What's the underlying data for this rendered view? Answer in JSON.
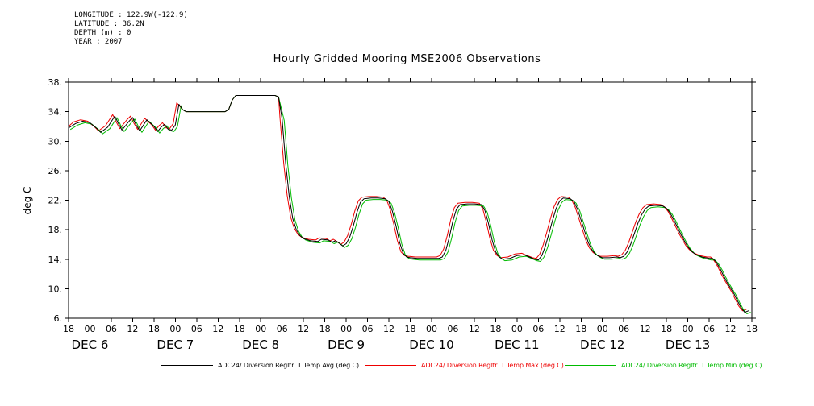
{
  "header": {
    "longitude_line": "LONGITUDE : 122.9W(-122.9)",
    "latitude_line": "LATITUDE : 36.2N",
    "depth_line": "DEPTH (m) : 0",
    "year_line": "YEAR : 2007"
  },
  "title": "Hourly Gridded Mooring MSE2006 Observations",
  "y_axis": {
    "label": "deg C",
    "tick_labels": [
      "38.",
      "34.",
      "30.",
      "26.",
      "22.",
      "18.",
      "14.",
      "10.",
      "6."
    ],
    "tick_values": [
      38,
      34,
      30,
      26,
      22,
      18,
      14,
      10,
      6
    ],
    "min": 6,
    "max": 38
  },
  "x_axis": {
    "hour_tick_step_hours": 6,
    "hour_tick_labels": [
      "18",
      "00",
      "06",
      "12",
      "18",
      "00",
      "06",
      "12",
      "18",
      "00",
      "06",
      "12",
      "18",
      "00",
      "06",
      "12",
      "18",
      "00",
      "06",
      "12",
      "18",
      "00",
      "06",
      "12",
      "18",
      "00",
      "06",
      "12",
      "18",
      "00",
      "06",
      "12",
      "18"
    ],
    "date_ticks": [
      {
        "label": "DEC 6",
        "hour": 6
      },
      {
        "label": "DEC 7",
        "hour": 30
      },
      {
        "label": "DEC 8",
        "hour": 54
      },
      {
        "label": "DEC 9",
        "hour": 78
      },
      {
        "label": "DEC 10",
        "hour": 102
      },
      {
        "label": "DEC 11",
        "hour": 126
      },
      {
        "label": "DEC 12",
        "hour": 150
      },
      {
        "label": "DEC 13",
        "hour": 174
      }
    ]
  },
  "chart_data": {
    "type": "line",
    "title": "Hourly Gridded Mooring MSE2006 Observations",
    "ylabel": "deg C",
    "ylim": [
      6,
      38
    ],
    "xlim": [
      0,
      192
    ],
    "x_unit": "hours, axis ticks every 6h from 18:00 DEC 5 to 18:00 DEC 13 2007",
    "grid": false,
    "legend_position": "bottom",
    "series": [
      {
        "name": "ADC24/ Diversion Regltr. 1 Temp Avg (deg C)",
        "color": "#000000",
        "points": [
          [
            0,
            31.8
          ],
          [
            2,
            32.4
          ],
          [
            4,
            32.7
          ],
          [
            6,
            32.5
          ],
          [
            8,
            31.7
          ],
          [
            9,
            31.2
          ],
          [
            11,
            31.9
          ],
          [
            13,
            33.4
          ],
          [
            14,
            32.4
          ],
          [
            15,
            31.5
          ],
          [
            17,
            32.7
          ],
          [
            18,
            33.2
          ],
          [
            19,
            32.2
          ],
          [
            20,
            31.4
          ],
          [
            22,
            32.9
          ],
          [
            24,
            32.0
          ],
          [
            25,
            31.3
          ],
          [
            26,
            31.9
          ],
          [
            27,
            32.3
          ],
          [
            28,
            31.6
          ],
          [
            29,
            31.5
          ],
          [
            30,
            32.2
          ],
          [
            31,
            35.0
          ],
          [
            32,
            34.3
          ],
          [
            33,
            34.0
          ],
          [
            38,
            34.0
          ],
          [
            44,
            34.0
          ],
          [
            45,
            34.3
          ],
          [
            46,
            35.6
          ],
          [
            47,
            36.2
          ],
          [
            52,
            36.2
          ],
          [
            58,
            36.2
          ],
          [
            59,
            36.0
          ],
          [
            60,
            33.0
          ],
          [
            61,
            27.0
          ],
          [
            62,
            22.5
          ],
          [
            63,
            19.5
          ],
          [
            64,
            18.0
          ],
          [
            65,
            17.2
          ],
          [
            66,
            16.8
          ],
          [
            68,
            16.5
          ],
          [
            70,
            16.4
          ],
          [
            71,
            16.7
          ],
          [
            73,
            16.6
          ],
          [
            74,
            16.3
          ],
          [
            75,
            16.5
          ],
          [
            76,
            16.2
          ],
          [
            77,
            15.8
          ],
          [
            78,
            16.1
          ],
          [
            79,
            17.0
          ],
          [
            80,
            18.5
          ],
          [
            81,
            20.3
          ],
          [
            82,
            21.7
          ],
          [
            83,
            22.2
          ],
          [
            85,
            22.3
          ],
          [
            87,
            22.3
          ],
          [
            89,
            22.2
          ],
          [
            90,
            21.8
          ],
          [
            91,
            20.5
          ],
          [
            92,
            18.5
          ],
          [
            93,
            16.3
          ],
          [
            94,
            14.8
          ],
          [
            95,
            14.3
          ],
          [
            96,
            14.2
          ],
          [
            98,
            14.1
          ],
          [
            101,
            14.1
          ],
          [
            104,
            14.1
          ],
          [
            105,
            14.3
          ],
          [
            106,
            15.2
          ],
          [
            107,
            17.0
          ],
          [
            108,
            19.2
          ],
          [
            109,
            20.8
          ],
          [
            110,
            21.4
          ],
          [
            112,
            21.5
          ],
          [
            114,
            21.5
          ],
          [
            116,
            21.4
          ],
          [
            117,
            20.6
          ],
          [
            118,
            18.8
          ],
          [
            119,
            16.6
          ],
          [
            120,
            15.0
          ],
          [
            121,
            14.3
          ],
          [
            122,
            14.0
          ],
          [
            124,
            14.1
          ],
          [
            126,
            14.5
          ],
          [
            128,
            14.6
          ],
          [
            129,
            14.4
          ],
          [
            130,
            14.2
          ],
          [
            131,
            14.0
          ],
          [
            132,
            13.9
          ],
          [
            133,
            14.5
          ],
          [
            134,
            15.8
          ],
          [
            135,
            17.5
          ],
          [
            136,
            19.3
          ],
          [
            137,
            20.9
          ],
          [
            138,
            21.9
          ],
          [
            139,
            22.3
          ],
          [
            141,
            22.2
          ],
          [
            142,
            21.8
          ],
          [
            143,
            20.8
          ],
          [
            144,
            19.3
          ],
          [
            145,
            17.8
          ],
          [
            146,
            16.3
          ],
          [
            147,
            15.3
          ],
          [
            148,
            14.7
          ],
          [
            149,
            14.4
          ],
          [
            150,
            14.2
          ],
          [
            152,
            14.2
          ],
          [
            154,
            14.3
          ],
          [
            155,
            14.2
          ],
          [
            156,
            14.4
          ],
          [
            157,
            15.0
          ],
          [
            158,
            16.1
          ],
          [
            159,
            17.5
          ],
          [
            160,
            18.9
          ],
          [
            161,
            20.0
          ],
          [
            162,
            20.8
          ],
          [
            163,
            21.2
          ],
          [
            165,
            21.3
          ],
          [
            167,
            21.2
          ],
          [
            168,
            20.9
          ],
          [
            169,
            20.3
          ],
          [
            170,
            19.4
          ],
          [
            171,
            18.4
          ],
          [
            172,
            17.4
          ],
          [
            173,
            16.5
          ],
          [
            174,
            15.7
          ],
          [
            175,
            15.1
          ],
          [
            176,
            14.7
          ],
          [
            177,
            14.5
          ],
          [
            178,
            14.3
          ],
          [
            179,
            14.2
          ],
          [
            180,
            14.1
          ],
          [
            181,
            14.1
          ],
          [
            182,
            13.6
          ],
          [
            183,
            12.8
          ],
          [
            184,
            11.8
          ],
          [
            185,
            10.9
          ],
          [
            186,
            10.1
          ],
          [
            187,
            9.3
          ],
          [
            188,
            8.3
          ],
          [
            189,
            7.4
          ],
          [
            190,
            6.8
          ],
          [
            191,
            7.0
          ]
        ]
      },
      {
        "name": "ADC24/ Diversion Regltr. 1 Temp Max (deg C)",
        "color": "#ee0000",
        "derived_from_series": 0,
        "t_offset_hours": -0.6,
        "value_offset": 0.2,
        "equal_to_base_hour_range": [
          32,
          59
        ]
      },
      {
        "name": "ADC24/ Diversion Regltr. 1 Temp Min (deg C)",
        "color": "#00bb00",
        "derived_from_series": 0,
        "t_offset_hours": 0.6,
        "value_offset": -0.2,
        "equal_to_base_hour_range": [
          32,
          59
        ]
      }
    ]
  }
}
